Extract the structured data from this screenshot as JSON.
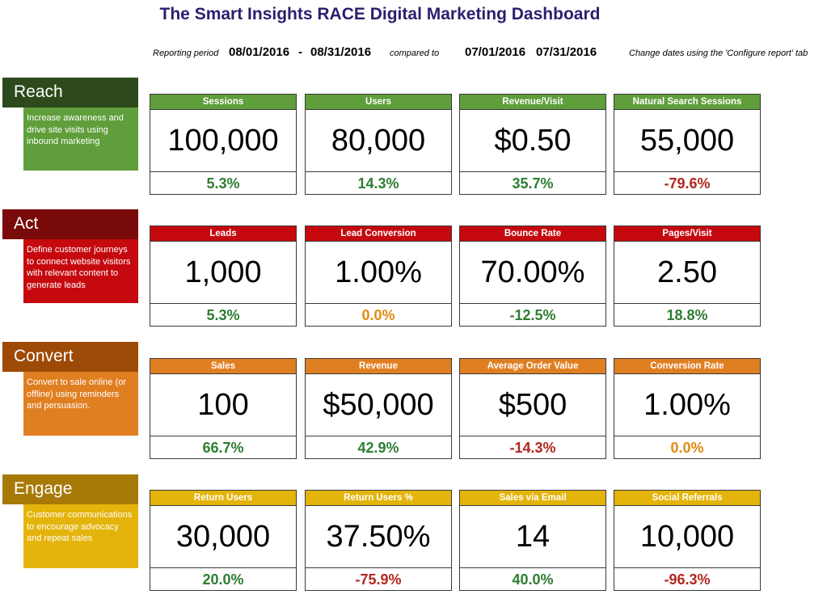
{
  "title": "The Smart Insights RACE Digital Marketing Dashboard",
  "reporting": {
    "label": "Reporting period",
    "start": "08/01/2016",
    "sep": "-",
    "end": "08/31/2016",
    "compared_label": "compared to",
    "compare_start": "07/01/2016",
    "compare_end": "07/31/2016",
    "note": "Change dates using the 'Configure report' tab"
  },
  "colors": {
    "reach_head": "#2e4a1c",
    "reach_body": "#5f9e3a",
    "act_head": "#7a0b0b",
    "act_body": "#c5090e",
    "convert_head": "#9e4a07",
    "convert_body": "#e07f22",
    "engage_head": "#a77a08",
    "engage_body": "#e4b40c",
    "positive": "#2e7d32",
    "negative": "#b3271e",
    "neutral": "#e38a11"
  },
  "sections": [
    {
      "name": "Reach",
      "description": "Increase awareness and drive site visits using inbound marketing",
      "metrics": [
        {
          "label": "Sessions",
          "value": "100,000",
          "change": "5.3%",
          "trend": "pos"
        },
        {
          "label": "Users",
          "value": "80,000",
          "change": "14.3%",
          "trend": "pos"
        },
        {
          "label": "Revenue/Visit",
          "value": "$0.50",
          "change": "35.7%",
          "trend": "pos"
        },
        {
          "label": "Natural Search Sessions",
          "value": "55,000",
          "change": "-79.6%",
          "trend": "neg"
        }
      ]
    },
    {
      "name": "Act",
      "description": "Define customer journeys to connect website visitors with relevant content to generate leads",
      "metrics": [
        {
          "label": "Leads",
          "value": "1,000",
          "change": "5.3%",
          "trend": "pos"
        },
        {
          "label": "Lead Conversion",
          "value": "1.00%",
          "change": "0.0%",
          "trend": "neu"
        },
        {
          "label": "Bounce Rate",
          "value": "70.00%",
          "change": "-12.5%",
          "trend": "pos"
        },
        {
          "label": "Pages/Visit",
          "value": "2.50",
          "change": "18.8%",
          "trend": "pos"
        }
      ]
    },
    {
      "name": "Convert",
      "description": "Convert to sale online (or offline) using reminders and persuasion.",
      "metrics": [
        {
          "label": "Sales",
          "value": "100",
          "change": "66.7%",
          "trend": "pos"
        },
        {
          "label": "Revenue",
          "value": "$50,000",
          "change": "42.9%",
          "trend": "pos"
        },
        {
          "label": "Average Order Value",
          "value": "$500",
          "change": "-14.3%",
          "trend": "neg"
        },
        {
          "label": "Conversion Rate",
          "value": "1.00%",
          "change": "0.0%",
          "trend": "neu"
        }
      ]
    },
    {
      "name": "Engage",
      "description": "Customer communications to encourage advocacy and repeat sales",
      "metrics": [
        {
          "label": "Return Users",
          "value": "30,000",
          "change": "20.0%",
          "trend": "pos"
        },
        {
          "label": "Return Users %",
          "value": "37.50%",
          "change": "-75.9%",
          "trend": "neg"
        },
        {
          "label": "Sales via Email",
          "value": "14",
          "change": "40.0%",
          "trend": "pos"
        },
        {
          "label": "Social Referrals",
          "value": "10,000",
          "change": "-96.3%",
          "trend": "neg"
        }
      ]
    }
  ]
}
